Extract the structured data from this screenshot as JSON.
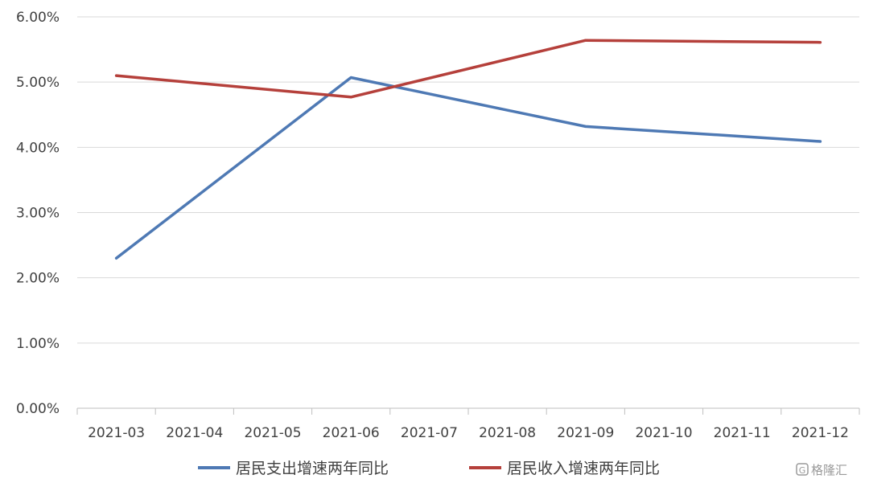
{
  "chart_data": {
    "type": "line",
    "categories": [
      "2021-03",
      "2021-04",
      "2021-05",
      "2021-06",
      "2021-07",
      "2021-08",
      "2021-09",
      "2021-10",
      "2021-11",
      "2021-12"
    ],
    "series": [
      {
        "name": "居民支出增速两年同比",
        "color": "#4e79b4",
        "points": [
          {
            "x": "2021-03",
            "y": 2.3
          },
          {
            "x": "2021-06",
            "y": 5.07
          },
          {
            "x": "2021-09",
            "y": 4.32
          },
          {
            "x": "2021-12",
            "y": 4.09
          }
        ]
      },
      {
        "name": "居民收入增速两年同比",
        "color": "#b5403b",
        "points": [
          {
            "x": "2021-03",
            "y": 5.1
          },
          {
            "x": "2021-06",
            "y": 4.77
          },
          {
            "x": "2021-09",
            "y": 5.64
          },
          {
            "x": "2021-12",
            "y": 5.61
          }
        ]
      }
    ],
    "yticks": [
      "0.00%",
      "1.00%",
      "2.00%",
      "3.00%",
      "4.00%",
      "5.00%",
      "6.00%"
    ],
    "ylim": [
      0,
      6
    ],
    "ylabel": "",
    "xlabel": "",
    "title": "",
    "grid": true,
    "legend": "bottom"
  },
  "watermark": {
    "text": "格隆汇",
    "icon": "G"
  }
}
